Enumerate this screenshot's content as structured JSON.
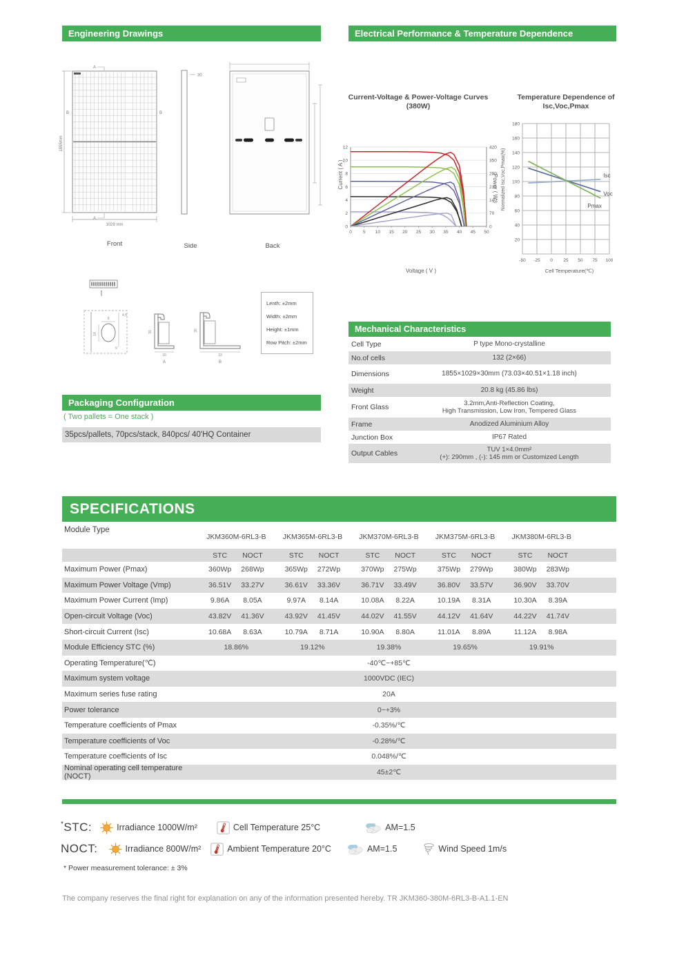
{
  "sections": {
    "engineering": {
      "title": "Engineering Drawings",
      "views": {
        "front": "Front",
        "side": "Side",
        "back": "Back"
      },
      "dims": {
        "height": "1855mm",
        "width": "1029 mm",
        "thickness": "30"
      },
      "markers": {
        "a": "A",
        "b": "B"
      },
      "detail_dims": [
        "9",
        "14",
        "4.5",
        "9"
      ],
      "profiles": {
        "a": {
          "label": "A",
          "height": "30",
          "width": "16"
        },
        "b": {
          "label": "B",
          "height": "30",
          "width": "33"
        }
      },
      "tolerances": [
        "Lenth: ±2mm",
        "Width: ±2mm",
        "Height: ±1mm",
        "Row Pitch: ±2mm"
      ]
    },
    "electrical": {
      "title": "Electrical Performance & Temperature Dependence"
    },
    "mechanical": {
      "title": "Mechanical Characteristics",
      "rows": [
        {
          "label": "Cell Type",
          "value": "P type Mono-crystalline",
          "shaded": false
        },
        {
          "label": "No.of cells",
          "value": "132 (2×66)",
          "shaded": true
        },
        {
          "label": "Dimensions",
          "value": "1855×1029×30mm (73.03×40.51×1.18 inch)",
          "shaded": false
        },
        {
          "label": "Weight",
          "value": "20.8 kg (45.86 lbs)",
          "shaded": true
        },
        {
          "label": "Front Glass",
          "value": "3.2mm,Anti-Reflection Coating,\nHigh Transmission, Low Iron, Tempered Glass",
          "shaded": false
        },
        {
          "label": "Frame",
          "value": "Anodized Aluminium Alloy",
          "shaded": true
        },
        {
          "label": "Junction Box",
          "value": "IP67 Rated",
          "shaded": false
        },
        {
          "label": "Output Cables",
          "value": "TUV  1×4.0mm²\n(+): 290mm , (-): 145 mm or Customized Length",
          "shaded": true
        }
      ]
    },
    "packaging": {
      "title": "Packaging Configuration",
      "note": "( Two pallets = One stack )",
      "detail": "35pcs/pallets, 70pcs/stack, 840pcs/ 40'HQ Container"
    },
    "specifications": {
      "title": "SPECIFICATIONS",
      "module_type_label": "Module Type",
      "modules": [
        "JKM360M-6RL3-B",
        "JKM365M-6RL3-B",
        "JKM370M-6RL3-B",
        "JKM375M-6RL3-B",
        "JKM380M-6RL3-B"
      ],
      "condition_labels": [
        "STC",
        "NOCT"
      ],
      "rows": [
        {
          "type": "pair",
          "label": "Maximum Power (Pmax)",
          "shaded": false,
          "values": [
            "360Wp",
            "268Wp",
            "365Wp",
            "272Wp",
            "370Wp",
            "275Wp",
            "375Wp",
            "279Wp",
            "380Wp",
            "283Wp"
          ]
        },
        {
          "type": "pair",
          "label": "Maximum Power Voltage (Vmp)",
          "shaded": true,
          "values": [
            "36.51V",
            "33.27V",
            "36.61V",
            "33.36V",
            "36.71V",
            "33.49V",
            "36.80V",
            "33.57V",
            "36.90V",
            "33.70V"
          ]
        },
        {
          "type": "pair",
          "label": "Maximum Power Current (Imp)",
          "shaded": false,
          "values": [
            "9.86A",
            "8.05A",
            "9.97A",
            "8.14A",
            "10.08A",
            "8.22A",
            "10.19A",
            "8.31A",
            "10.30A",
            "8.39A"
          ]
        },
        {
          "type": "pair",
          "label": "Open-circuit Voltage (Voc)",
          "shaded": true,
          "values": [
            "43.82V",
            "41.36V",
            "43.92V",
            "41.45V",
            "44.02V",
            "41.55V",
            "44.12V",
            "41.64V",
            "44.22V",
            "41.74V"
          ]
        },
        {
          "type": "pair",
          "label": "Short-circuit Current (Isc)",
          "shaded": false,
          "values": [
            "10.68A",
            "8.63A",
            "10.79A",
            "8.71A",
            "10.90A",
            "8.80A",
            "11.01A",
            "8.89A",
            "11.12A",
            "8.98A"
          ]
        },
        {
          "type": "permodule",
          "label": "Module Efficiency STC (%)",
          "shaded": true,
          "values": [
            "18.86%",
            "19.12%",
            "19.38%",
            "19.65%",
            "19.91%"
          ]
        },
        {
          "type": "full",
          "label": "Operating Temperature(℃)",
          "shaded": false,
          "value": "-40℃~+85℃"
        },
        {
          "type": "full",
          "label": "Maximum system voltage",
          "shaded": true,
          "value": "1000VDC (IEC)"
        },
        {
          "type": "full",
          "label": "Maximum series fuse rating",
          "shaded": false,
          "value": "20A"
        },
        {
          "type": "full",
          "label": "Power tolerance",
          "shaded": true,
          "value": "0~+3%"
        },
        {
          "type": "full",
          "label": "Temperature coefficients of Pmax",
          "shaded": false,
          "value": "-0.35%/℃"
        },
        {
          "type": "full",
          "label": "Temperature coefficients of Voc",
          "shaded": true,
          "value": "-0.28%/℃"
        },
        {
          "type": "full",
          "label": "Temperature coefficients of Isc",
          "shaded": false,
          "value": "0.048%/℃"
        },
        {
          "type": "full",
          "label": "Nominal operating cell temperature  (NOCT)",
          "shaded": true,
          "value": "45±2℃"
        }
      ]
    }
  },
  "chart_data": [
    {
      "id": "iv",
      "type": "line",
      "title": "Current-Voltage & Power-Voltage Curves (380W)",
      "xlabel": "Voltage ( V )",
      "ylabel_left": "Current ( A )",
      "ylabel_right": "Power ( W )",
      "xlim": [
        0,
        50
      ],
      "xstep": 5,
      "ylim_left": [
        0,
        12
      ],
      "ystep_left": 2,
      "ylim_right": [
        0,
        420
      ],
      "ystep_right": 70,
      "grid": "horizontal",
      "legend": "none",
      "current_series": [
        {
          "color": "#c8262d",
          "points": [
            [
              0,
              11.3
            ],
            [
              15,
              11.3
            ],
            [
              25,
              11.28
            ],
            [
              30,
              11.2
            ],
            [
              33,
              11.1
            ],
            [
              36,
              10.75
            ],
            [
              38,
              10.0
            ],
            [
              40,
              8.1
            ],
            [
              41.5,
              4.6
            ],
            [
              42.3,
              1.6
            ],
            [
              42.6,
              0
            ]
          ]
        },
        {
          "color": "#8cbf4e",
          "points": [
            [
              0,
              9.0
            ],
            [
              20,
              9.0
            ],
            [
              28,
              8.95
            ],
            [
              33,
              8.85
            ],
            [
              36,
              8.6
            ],
            [
              38,
              8.0
            ],
            [
              40,
              6.3
            ],
            [
              41.4,
              3.1
            ],
            [
              42.2,
              0
            ]
          ]
        },
        {
          "color": "#63639e",
          "points": [
            [
              0,
              6.8
            ],
            [
              22,
              6.78
            ],
            [
              30,
              6.7
            ],
            [
              34,
              6.5
            ],
            [
              36,
              6.2
            ],
            [
              38,
              5.4
            ],
            [
              40,
              3.5
            ],
            [
              41.2,
              1.2
            ],
            [
              41.8,
              0
            ]
          ]
        },
        {
          "color": "#2b2b2b",
          "points": [
            [
              0,
              4.5
            ],
            [
              22,
              4.48
            ],
            [
              30,
              4.4
            ],
            [
              33,
              4.3
            ],
            [
              35,
              4.1
            ],
            [
              37,
              3.6
            ],
            [
              39,
              2.3
            ],
            [
              40.3,
              0.9
            ],
            [
              40.8,
              0
            ]
          ]
        },
        {
          "color": "#a6a6cc",
          "points": [
            [
              0,
              2.2
            ],
            [
              20,
              2.18
            ],
            [
              28,
              2.1
            ],
            [
              32,
              1.95
            ],
            [
              34,
              1.7
            ],
            [
              36,
              1.2
            ],
            [
              37.5,
              0.6
            ],
            [
              38.8,
              0
            ]
          ]
        }
      ],
      "power_series": [
        {
          "color": "#c8262d",
          "points": [
            [
              0,
              0
            ],
            [
              10,
              112
            ],
            [
              20,
              225
            ],
            [
              28,
              314
            ],
            [
              32,
              356
            ],
            [
              35,
              383
            ],
            [
              36.8,
              392
            ],
            [
              38,
              381
            ],
            [
              40,
              322
            ],
            [
              41.5,
              190
            ],
            [
              42.6,
              0
            ]
          ]
        },
        {
          "color": "#8cbf4e",
          "points": [
            [
              0,
              0
            ],
            [
              10,
              90
            ],
            [
              20,
              179
            ],
            [
              28,
              250
            ],
            [
              32,
              283
            ],
            [
              35,
              305
            ],
            [
              37,
              313
            ],
            [
              38.5,
              299
            ],
            [
              40,
              251
            ],
            [
              41.4,
              128
            ],
            [
              42.2,
              0
            ]
          ]
        },
        {
          "color": "#63639e",
          "points": [
            [
              0,
              0
            ],
            [
              10,
              68
            ],
            [
              20,
              135
            ],
            [
              28,
              188
            ],
            [
              32,
              213
            ],
            [
              35,
              229
            ],
            [
              36.8,
              234
            ],
            [
              38,
              223
            ],
            [
              40,
              140
            ],
            [
              41.8,
              0
            ]
          ]
        },
        {
          "color": "#2b2b2b",
          "points": [
            [
              0,
              0
            ],
            [
              10,
              45
            ],
            [
              20,
              89
            ],
            [
              28,
              124
            ],
            [
              31,
              138
            ],
            [
              33.5,
              148
            ],
            [
              35.5,
              152
            ],
            [
              37,
              143
            ],
            [
              39,
              90
            ],
            [
              40.8,
              0
            ]
          ]
        },
        {
          "color": "#a6a6cc",
          "points": [
            [
              0,
              0
            ],
            [
              10,
              22
            ],
            [
              20,
              43
            ],
            [
              27,
              57
            ],
            [
              31,
              64
            ],
            [
              34,
              69
            ],
            [
              35.5,
              70
            ],
            [
              37,
              61
            ],
            [
              38.8,
              0
            ]
          ]
        }
      ]
    },
    {
      "id": "temperature",
      "type": "line",
      "title": "Temperature Dependence of Isc,Voc,Pmax",
      "xlabel": "Cell Temperature(℃)",
      "ylabel": "Normalized Isc,Voc,Pmax(%)",
      "xlim": [
        -50,
        100
      ],
      "xstep": 25,
      "ylim": [
        20,
        180
      ],
      "ystep": 20,
      "grid": "both",
      "legend": "inline",
      "series": [
        {
          "name": "Isc",
          "color": "#94b0ca",
          "points": [
            [
              -40,
              98
            ],
            [
              85,
              103
            ]
          ]
        },
        {
          "name": "Voc",
          "color": "#5d6b9d",
          "points": [
            [
              -40,
              118.5
            ],
            [
              85,
              86
            ]
          ]
        },
        {
          "name": "Pmax",
          "color": "#7db456",
          "points": [
            [
              -40,
              128
            ],
            [
              85,
              77
            ]
          ]
        }
      ]
    }
  ],
  "test_conditions": {
    "stc": {
      "prefix": "*",
      "name": "STC",
      "suffix": ":",
      "items": [
        {
          "icon": "sun-icon",
          "text": "Irradiance 1000W/m²"
        },
        {
          "icon": "thermometer-icon",
          "text": "Cell Temperature 25°C"
        },
        {
          "icon": "clouds-icon",
          "text": "AM=1.5"
        }
      ]
    },
    "noct": {
      "prefix": "",
      "name": "NOCT",
      "suffix": ":",
      "items": [
        {
          "icon": "sun-icon",
          "text": "Irradiance 800W/m²"
        },
        {
          "icon": "thermometer-icon",
          "text": "Ambient Temperature 20°C"
        },
        {
          "icon": "clouds-icon",
          "text": "AM=1.5"
        },
        {
          "icon": "tornado-icon",
          "text": "Wind Speed 1m/s"
        }
      ]
    },
    "note": "* Power measurement tolerance: ± 3%"
  },
  "footer": {
    "text": "The company reserves the final right for explanation on any of the information presented hereby. TR JKM360-380M-6RL3-B-A1.1-EN"
  }
}
